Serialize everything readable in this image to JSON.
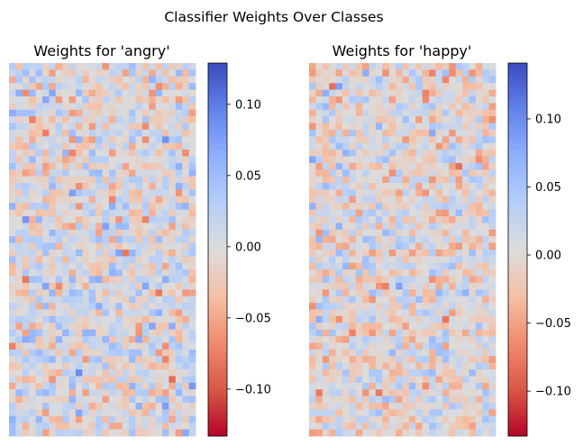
{
  "figure": {
    "title": "Classifier Weights Over Classes"
  },
  "chart_data": [
    {
      "type": "heatmap",
      "title": "Weights for 'angry'",
      "colormap": "coolwarm",
      "grid_cols": 28,
      "grid_rows": 56,
      "axes_visible": false,
      "vmin": -0.133,
      "vmax": 0.129,
      "seed": 7,
      "colorbar": {
        "ticks": [
          0.1,
          0.05,
          0.0,
          -0.05,
          -0.1
        ],
        "tick_labels": [
          "0.10",
          "0.05",
          "0.00",
          "−0.05",
          "−0.10"
        ]
      }
    },
    {
      "type": "heatmap",
      "title": "Weights for 'happy'",
      "colormap": "coolwarm",
      "grid_cols": 28,
      "grid_rows": 56,
      "axes_visible": false,
      "vmin": -0.133,
      "vmax": 0.141,
      "seed": 21,
      "colorbar": {
        "ticks": [
          0.1,
          0.05,
          0.0,
          -0.05,
          -0.1
        ],
        "tick_labels": [
          "0.10",
          "0.05",
          "0.00",
          "−0.05",
          "−0.10"
        ]
      }
    }
  ]
}
